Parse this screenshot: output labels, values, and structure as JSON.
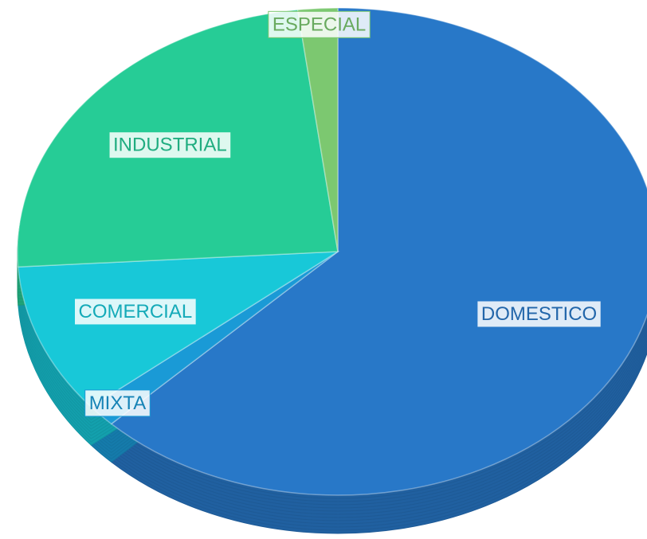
{
  "chart_data": {
    "type": "pie",
    "categories": [
      "DOMESTICO",
      "MIXTA",
      "COMERCIAL",
      "INDUSTRIAL",
      "ESPECIAL"
    ],
    "values": [
      62.5,
      1.5,
      10,
      24,
      2
    ],
    "colors": [
      "#2878c8",
      "#1a9ad6",
      "#18c8d8",
      "#26cc96",
      "#7cc870"
    ]
  }
}
